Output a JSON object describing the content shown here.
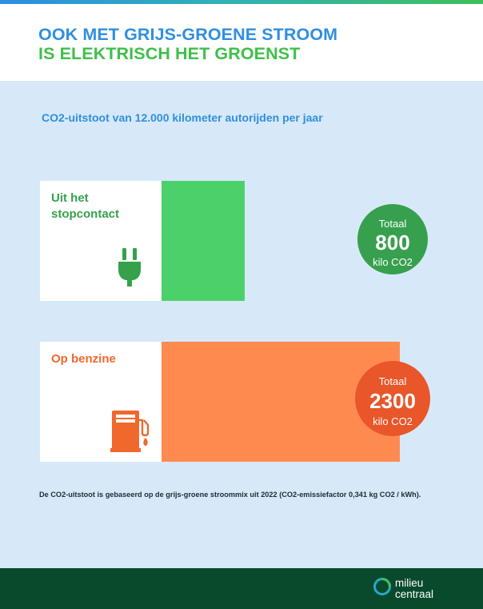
{
  "header": {
    "title_line1": "OOK MET GRIJS-GROENE STROOM",
    "title_line2": "IS ELEKTRISCH HET GROENST",
    "title_colors": [
      "#2F8FE0",
      "#3FBF4A"
    ]
  },
  "chart_data": {
    "type": "bar",
    "orientation": "horizontal",
    "title": "CO2-uitstoot van 12.000 kilometer autorijden per jaar",
    "categories": [
      "Uit het stopcontact",
      "Op benzine"
    ],
    "values": [
      800,
      2300
    ],
    "unit": "kilo CO2",
    "colors": [
      "#4CD16A",
      "#FF8A50"
    ],
    "xlim": [
      0,
      2300
    ],
    "grid": false,
    "annotations": [
      {
        "category": "Uit het stopcontact",
        "label": "Totaal",
        "value": "800",
        "unit": "kilo CO2",
        "color": "#37A04E"
      },
      {
        "category": "Op benzine",
        "label": "Totaal",
        "value": "2300",
        "unit": "kilo CO2",
        "color": "#E8562A"
      }
    ],
    "icons": [
      "plug-icon",
      "fuel-pump-icon"
    ]
  },
  "footnote": "De CO2-uitstoot is gebaseerd op de grijs-groene stroommix uit 2022 (CO2-emissiefactor 0,341 kg CO2 / kWh).",
  "footer": {
    "logo_line1": "milieu",
    "logo_line2": "centraal",
    "background": "#0A4A2C"
  }
}
